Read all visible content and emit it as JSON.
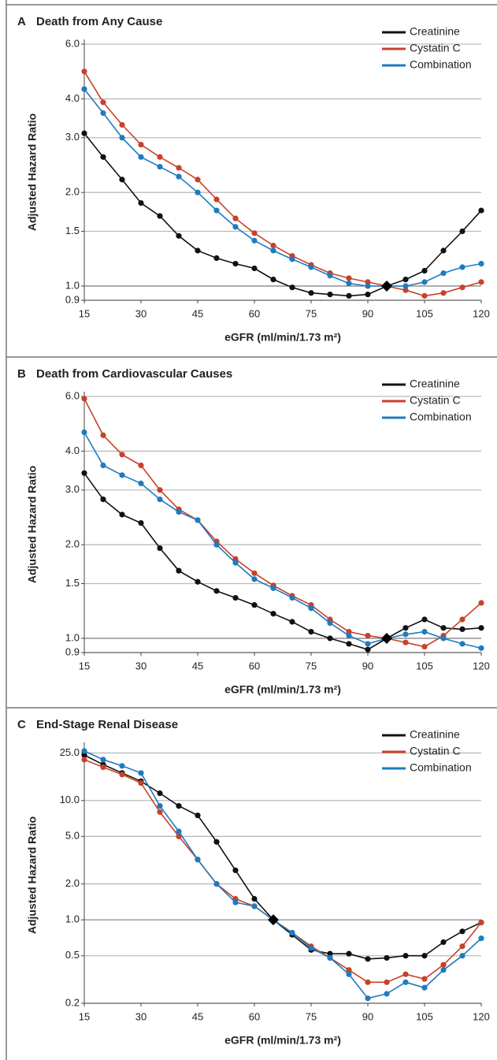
{
  "chart_data": [
    {
      "type": "line",
      "label": "A",
      "title": "Death from Any Cause",
      "x_label": "eGFR (ml/min/1.73 m²)",
      "y_label": "Adjusted Hazard Ratio",
      "log_y": true,
      "grid": true,
      "legend": "upper right",
      "x": [
        15,
        20,
        25,
        30,
        35,
        40,
        45,
        50,
        55,
        60,
        65,
        70,
        75,
        80,
        85,
        90,
        95,
        100,
        105,
        110,
        115,
        120
      ],
      "xlim": [
        15,
        120
      ],
      "xticks": [
        15,
        30,
        45,
        60,
        75,
        90,
        105,
        120
      ],
      "ylim": [
        0.9,
        6
      ],
      "yticks": [
        0.9,
        {
          "value": 1,
          "label": "1.0"
        },
        1.5,
        {
          "value": 2,
          "label": "2.0"
        },
        {
          "value": 3,
          "label": "3.0"
        },
        {
          "value": 4,
          "label": "4.0"
        },
        {
          "value": 6,
          "label": "6.0"
        }
      ],
      "reference": {
        "x": 95,
        "y": 1
      },
      "series": [
        {
          "name": "Creatinine",
          "color": "#111111",
          "values": [
            3.1,
            2.6,
            2.2,
            1.85,
            1.68,
            1.45,
            1.3,
            1.23,
            1.18,
            1.14,
            1.05,
            0.99,
            0.95,
            0.94,
            0.93,
            0.94,
            1.0,
            1.05,
            1.12,
            1.3,
            1.5,
            1.75
          ]
        },
        {
          "name": "Cystatin C",
          "color": "#c8412b",
          "values": [
            4.9,
            3.9,
            3.3,
            2.85,
            2.6,
            2.4,
            2.2,
            1.9,
            1.65,
            1.48,
            1.35,
            1.25,
            1.17,
            1.1,
            1.06,
            1.03,
            1.0,
            0.97,
            0.93,
            0.95,
            0.99,
            1.03
          ]
        },
        {
          "name": "Combination",
          "color": "#1f7bbf",
          "values": [
            4.3,
            3.6,
            3.0,
            2.6,
            2.42,
            2.25,
            2.0,
            1.75,
            1.55,
            1.4,
            1.3,
            1.22,
            1.15,
            1.08,
            1.02,
            1.0,
            1.0,
            1.0,
            1.03,
            1.1,
            1.15,
            1.18
          ]
        }
      ]
    },
    {
      "type": "line",
      "label": "B",
      "title": "Death from Cardiovascular Causes",
      "x_label": "eGFR (ml/min/1.73 m²)",
      "y_label": "Adjusted Hazard Ratio",
      "log_y": true,
      "grid": true,
      "legend": "upper right",
      "x": [
        15,
        20,
        25,
        30,
        35,
        40,
        45,
        50,
        55,
        60,
        65,
        70,
        75,
        80,
        85,
        90,
        95,
        100,
        105,
        110,
        115,
        120
      ],
      "xlim": [
        15,
        120
      ],
      "xticks": [
        15,
        30,
        45,
        60,
        75,
        90,
        105,
        120
      ],
      "ylim": [
        0.9,
        6
      ],
      "yticks": [
        0.9,
        {
          "value": 1,
          "label": "1.0"
        },
        1.5,
        {
          "value": 2,
          "label": "2.0"
        },
        {
          "value": 3,
          "label": "3.0"
        },
        {
          "value": 4,
          "label": "4.0"
        },
        {
          "value": 6,
          "label": "6.0"
        }
      ],
      "reference": {
        "x": 95,
        "y": 1
      },
      "series": [
        {
          "name": "Creatinine",
          "color": "#111111",
          "values": [
            3.4,
            2.8,
            2.5,
            2.35,
            1.95,
            1.65,
            1.52,
            1.42,
            1.35,
            1.28,
            1.2,
            1.13,
            1.05,
            1.0,
            0.96,
            0.92,
            1.0,
            1.08,
            1.15,
            1.08,
            1.07,
            1.08
          ]
        },
        {
          "name": "Cystatin C",
          "color": "#c8412b",
          "values": [
            5.9,
            4.5,
            3.9,
            3.6,
            3.0,
            2.6,
            2.4,
            2.05,
            1.8,
            1.62,
            1.48,
            1.37,
            1.28,
            1.15,
            1.05,
            1.02,
            1.0,
            0.97,
            0.94,
            1.02,
            1.15,
            1.3
          ]
        },
        {
          "name": "Combination",
          "color": "#1f7bbf",
          "values": [
            4.6,
            3.6,
            3.35,
            3.15,
            2.8,
            2.55,
            2.4,
            2.0,
            1.75,
            1.55,
            1.45,
            1.35,
            1.25,
            1.12,
            1.02,
            0.96,
            1.0,
            1.03,
            1.05,
            1.0,
            0.96,
            0.93
          ]
        }
      ]
    },
    {
      "type": "line",
      "label": "C",
      "title": "End-Stage Renal Disease",
      "x_label": "eGFR (ml/min/1.73 m²)",
      "y_label": "Adjusted Hazard Ratio",
      "log_y": true,
      "grid": true,
      "legend": "upper right",
      "x": [
        15,
        20,
        25,
        30,
        35,
        40,
        45,
        50,
        55,
        60,
        65,
        70,
        75,
        80,
        85,
        90,
        95,
        100,
        105,
        110,
        115,
        120
      ],
      "xlim": [
        15,
        120
      ],
      "xticks": [
        15,
        30,
        45,
        60,
        75,
        90,
        105,
        120
      ],
      "ylim": [
        0.2,
        28
      ],
      "yticks": [
        0.2,
        0.5,
        {
          "value": 1,
          "label": "1.0"
        },
        {
          "value": 2,
          "label": "2.0"
        },
        {
          "value": 5,
          "label": "5.0"
        },
        {
          "value": 10,
          "label": "10.0"
        },
        {
          "value": 25,
          "label": "25.0"
        }
      ],
      "reference": {
        "x": 65,
        "y": 1
      },
      "series": [
        {
          "name": "Creatinine",
          "color": "#111111",
          "values": [
            24,
            20,
            17,
            14.5,
            11.5,
            9,
            7.5,
            4.5,
            2.6,
            1.5,
            1.0,
            0.75,
            0.56,
            0.52,
            0.52,
            0.47,
            0.48,
            0.5,
            0.5,
            0.65,
            0.8,
            0.95
          ]
        },
        {
          "name": "Cystatin C",
          "color": "#c8412b",
          "values": [
            22,
            19,
            16.5,
            14,
            8,
            5,
            3.2,
            2.0,
            1.5,
            1.3,
            1.0,
            0.78,
            0.6,
            0.48,
            0.38,
            0.3,
            0.3,
            0.35,
            0.32,
            0.42,
            0.6,
            0.95
          ]
        },
        {
          "name": "Combination",
          "color": "#1f7bbf",
          "values": [
            26,
            22,
            19.5,
            17,
            9,
            5.5,
            3.2,
            2.0,
            1.4,
            1.3,
            1.0,
            0.78,
            0.58,
            0.48,
            0.35,
            0.22,
            0.24,
            0.3,
            0.27,
            0.38,
            0.5,
            0.7
          ]
        }
      ]
    }
  ]
}
